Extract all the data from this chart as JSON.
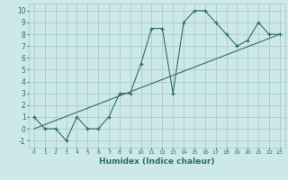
{
  "xlabel": "Humidex (Indice chaleur)",
  "bg_color": "#cde8e8",
  "grid_color": "#aacccc",
  "line_color": "#2d6e62",
  "xlim": [
    -0.5,
    23.5
  ],
  "ylim": [
    -1.6,
    10.6
  ],
  "xticks": [
    0,
    1,
    2,
    3,
    4,
    5,
    6,
    7,
    8,
    9,
    10,
    11,
    12,
    13,
    14,
    15,
    16,
    17,
    18,
    19,
    20,
    21,
    22,
    23
  ],
  "yticks": [
    -1,
    0,
    1,
    2,
    3,
    4,
    5,
    6,
    7,
    8,
    9,
    10
  ],
  "data_x": [
    0,
    1,
    2,
    3,
    4,
    5,
    6,
    7,
    8,
    9,
    10,
    11,
    12,
    13,
    14,
    15,
    16,
    17,
    18,
    19,
    20,
    21,
    22,
    23
  ],
  "data_y": [
    1,
    0,
    0,
    -1,
    1,
    0,
    0,
    1,
    3,
    3,
    5.5,
    8.5,
    8.5,
    3,
    9,
    10,
    10,
    9,
    8,
    7,
    7.5,
    9,
    8,
    8
  ],
  "line2_x": [
    0,
    23
  ],
  "line2_y": [
    0,
    8
  ]
}
